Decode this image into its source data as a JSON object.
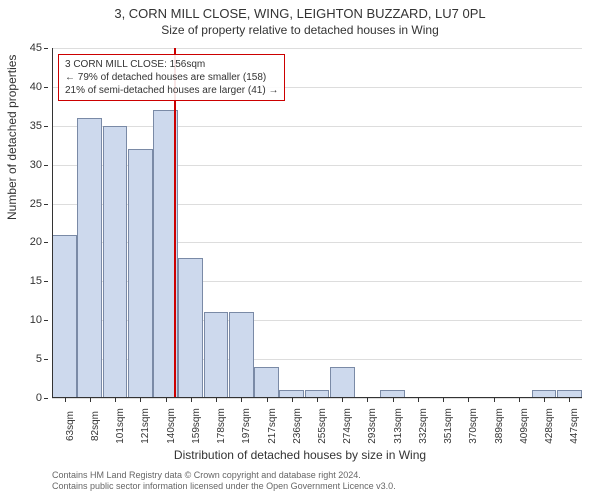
{
  "title": "3, CORN MILL CLOSE, WING, LEIGHTON BUZZARD, LU7 0PL",
  "subtitle": "Size of property relative to detached houses in Wing",
  "ylabel": "Number of detached properties",
  "xlabel": "Distribution of detached houses by size in Wing",
  "credits_line1": "Contains HM Land Registry data © Crown copyright and database right 2024.",
  "credits_line2": "Contains public sector information licensed under the Open Government Licence v3.0.",
  "annotation": {
    "line1": "3 CORN MILL CLOSE: 156sqm",
    "line2": "← 79% of detached houses are smaller (158)",
    "line3": "21% of semi-detached houses are larger (41) →",
    "border_color": "#cc0000",
    "text_color": "#333333"
  },
  "chart": {
    "type": "histogram",
    "ylim": [
      0,
      45
    ],
    "ytick_step": 5,
    "background_color": "#ffffff",
    "grid_color": "#dddddd",
    "bar_fill": "#cdd9ed",
    "bar_stroke": "#7a8aa6",
    "marker_line_color": "#cc0000",
    "marker_value_index": 4.85,
    "categories": [
      "63sqm",
      "82sqm",
      "101sqm",
      "121sqm",
      "140sqm",
      "159sqm",
      "178sqm",
      "197sqm",
      "217sqm",
      "236sqm",
      "255sqm",
      "274sqm",
      "293sqm",
      "313sqm",
      "332sqm",
      "351sqm",
      "370sqm",
      "389sqm",
      "409sqm",
      "428sqm",
      "447sqm"
    ],
    "values": [
      21,
      36,
      35,
      32,
      37,
      18,
      11,
      11,
      4,
      1,
      1,
      4,
      0,
      1,
      0,
      0,
      0,
      0,
      0,
      1,
      1
    ],
    "bar_width_ratio": 0.98,
    "title_fontsize": 13,
    "label_fontsize": 12,
    "tick_fontsize": 11
  }
}
